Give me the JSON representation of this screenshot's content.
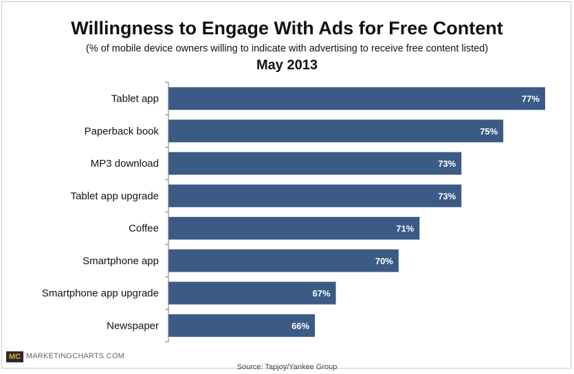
{
  "header": {
    "title": "Willingness to Engage With Ads for Free Content",
    "subtitle": "(% of mobile device owners willing to indicate with advertising to receive free content listed)",
    "date": "May 2013"
  },
  "footer": {
    "logo_text": "MC",
    "brand": "MARKETINGCHARTS.COM",
    "source": "Source: Tapjoy/Yankee Group"
  },
  "colors": {
    "bar": "#3b5b86"
  },
  "chart_data": {
    "type": "bar",
    "orientation": "horizontal",
    "title": "Willingness to Engage With Ads for Free Content",
    "subtitle": "(% of mobile device owners willing to indicate with advertising to receive free content listed)",
    "categories": [
      "Tablet app",
      "Paperback book",
      "MP3 download",
      "Tablet app upgrade",
      "Coffee",
      "Smartphone app",
      "Smartphone app upgrade",
      "Newspaper"
    ],
    "values": [
      77,
      75,
      73,
      73,
      71,
      70,
      67,
      66
    ],
    "value_labels": [
      "77%",
      "75%",
      "73%",
      "73%",
      "71%",
      "70%",
      "67%",
      "66%"
    ],
    "xlim": [
      59,
      77
    ],
    "grid": false,
    "legend": "none"
  }
}
